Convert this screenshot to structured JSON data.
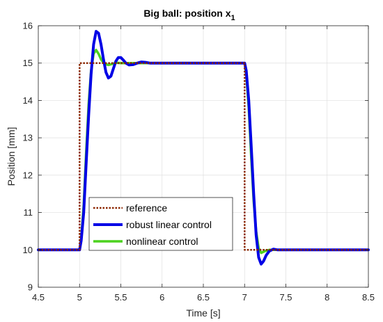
{
  "chart_data": {
    "type": "line",
    "title": "Big ball: position x",
    "title_subscript": "1",
    "xlabel": "Time [s]",
    "ylabel": "Position [mm]",
    "xlim": [
      4.5,
      8.5
    ],
    "ylim": [
      9,
      16
    ],
    "xticks": [
      4.5,
      5,
      5.5,
      6,
      6.5,
      7,
      7.5,
      8,
      8.5
    ],
    "xtick_labels": [
      "4.5",
      "5",
      "5.5",
      "6",
      "6.5",
      "7",
      "7.5",
      "8",
      "8.5"
    ],
    "yticks": [
      9,
      10,
      11,
      12,
      13,
      14,
      15,
      16
    ],
    "ytick_labels": [
      "9",
      "10",
      "11",
      "12",
      "13",
      "14",
      "15",
      "16"
    ],
    "grid": true,
    "legend_position": "lower-left",
    "series": [
      {
        "name": "reference",
        "color": "#8B2500",
        "style": "dotted",
        "x": [
          4.5,
          5.0,
          5.0,
          7.0,
          7.0,
          8.5
        ],
        "y": [
          10,
          10,
          15,
          15,
          10,
          10
        ]
      },
      {
        "name": "robust linear control",
        "color": "#0000E6",
        "style": "solid",
        "x": [
          4.5,
          5.0,
          5.02,
          5.05,
          5.08,
          5.11,
          5.14,
          5.17,
          5.2,
          5.23,
          5.26,
          5.29,
          5.32,
          5.35,
          5.38,
          5.41,
          5.44,
          5.47,
          5.5,
          5.53,
          5.56,
          5.6,
          5.65,
          5.7,
          5.75,
          5.8,
          5.85,
          5.9,
          6.0,
          6.2,
          6.5,
          7.0,
          7.02,
          7.05,
          7.08,
          7.11,
          7.14,
          7.17,
          7.2,
          7.23,
          7.26,
          7.3,
          7.35,
          7.4,
          7.5,
          8.0,
          8.5
        ],
        "y": [
          10,
          10,
          10.25,
          11.0,
          12.3,
          13.6,
          14.7,
          15.5,
          15.85,
          15.8,
          15.5,
          15.1,
          14.75,
          14.6,
          14.65,
          14.85,
          15.05,
          15.15,
          15.15,
          15.08,
          15.0,
          14.95,
          14.96,
          15.0,
          15.03,
          15.02,
          15.0,
          15.0,
          15.0,
          15.0,
          15.0,
          15.0,
          14.8,
          14.0,
          12.8,
          11.5,
          10.4,
          9.8,
          9.62,
          9.7,
          9.85,
          9.97,
          10.02,
          10.0,
          10.0,
          10.0,
          10.0
        ]
      },
      {
        "name": "nonlinear control",
        "color": "#4CD21E",
        "style": "solid",
        "x": [
          4.5,
          5.0,
          5.02,
          5.05,
          5.08,
          5.11,
          5.14,
          5.17,
          5.2,
          5.23,
          5.26,
          5.3,
          5.35,
          5.4,
          5.45,
          5.5,
          5.6,
          6.0,
          6.5,
          7.0,
          7.02,
          7.05,
          7.08,
          7.11,
          7.14,
          7.17,
          7.2,
          7.25,
          7.3,
          7.5,
          8.0,
          8.5
        ],
        "y": [
          10,
          10,
          10.3,
          11.2,
          12.6,
          13.9,
          14.8,
          15.25,
          15.35,
          15.25,
          15.1,
          14.98,
          14.95,
          14.98,
          15.01,
          15.0,
          15.0,
          15.0,
          15.0,
          15.0,
          14.7,
          13.8,
          12.5,
          11.3,
          10.5,
          10.05,
          9.92,
          9.97,
          10.0,
          10.0,
          10.0,
          10.0
        ]
      }
    ]
  }
}
